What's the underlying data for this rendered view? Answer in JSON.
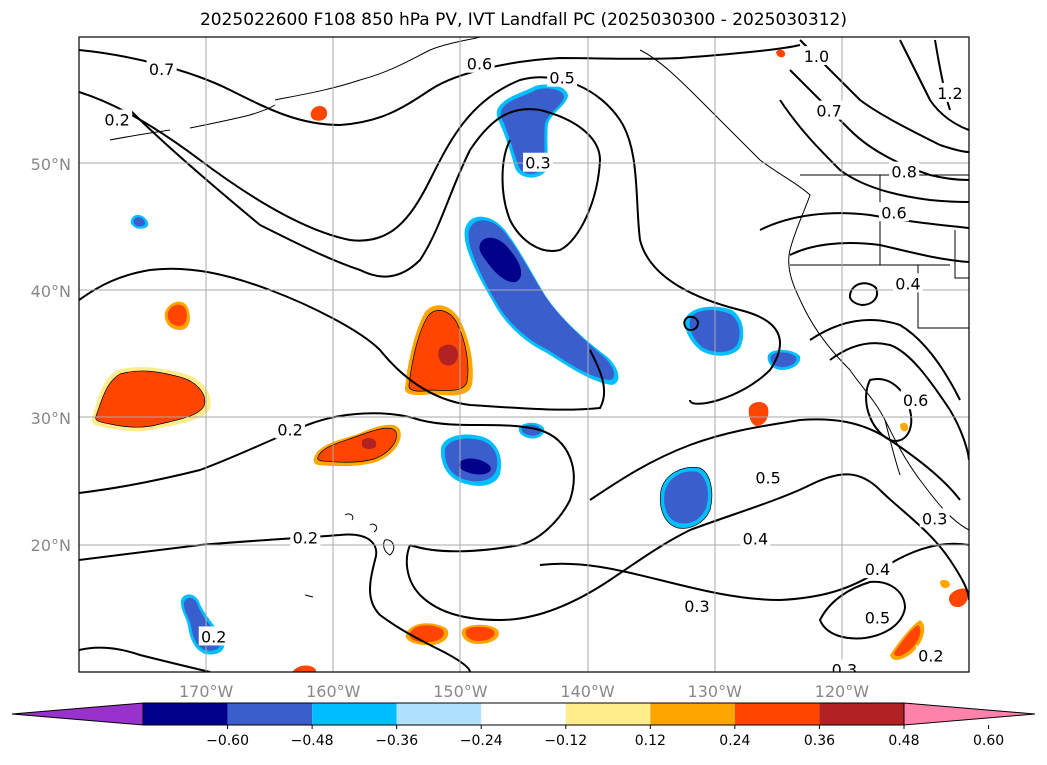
{
  "title": "2025022600 F108 850 hPa PV, IVT Landfall PC (2025030300 - 2025030312)",
  "map": {
    "lon_range": [
      -180,
      -110
    ],
    "lat_range": [
      10,
      60
    ],
    "lat_ticks": [
      {
        "value": 50,
        "label": "50°N"
      },
      {
        "value": 40,
        "label": "40°N"
      },
      {
        "value": 30,
        "label": "30°N"
      },
      {
        "value": 20,
        "label": "20°N"
      }
    ],
    "lon_ticks": [
      {
        "value": -170,
        "label": "170°W"
      },
      {
        "value": -160,
        "label": "160°W"
      },
      {
        "value": -150,
        "label": "150°W"
      },
      {
        "value": -140,
        "label": "140°W"
      },
      {
        "value": -130,
        "label": "130°W"
      },
      {
        "value": -120,
        "label": "120°W"
      }
    ],
    "grid": true,
    "contour_labels": [
      {
        "text": "0.7",
        "lon": -173.5,
        "lat": 57.5
      },
      {
        "text": "0.6",
        "lon": -148.5,
        "lat": 57.9
      },
      {
        "text": "0.5",
        "lon": -142,
        "lat": 56.8
      },
      {
        "text": "0.2",
        "lon": -177,
        "lat": 53.5
      },
      {
        "text": "1.0",
        "lon": -122,
        "lat": 58.5
      },
      {
        "text": "0.7",
        "lon": -121,
        "lat": 54.2
      },
      {
        "text": "1.2",
        "lon": -111.5,
        "lat": 55.6
      },
      {
        "text": "0.3",
        "lon": -143.9,
        "lat": 50.1
      },
      {
        "text": "0.8",
        "lon": -115.1,
        "lat": 49.4
      },
      {
        "text": "0.6",
        "lon": -115.9,
        "lat": 46.2
      },
      {
        "text": "0.4",
        "lon": -114.8,
        "lat": 40.6
      },
      {
        "text": "0.6",
        "lon": -114.2,
        "lat": 31.4
      },
      {
        "text": "0.2",
        "lon": -163.4,
        "lat": 29.1
      },
      {
        "text": "0.5",
        "lon": -125.8,
        "lat": 25.3
      },
      {
        "text": "0.2",
        "lon": -162.2,
        "lat": 20.6
      },
      {
        "text": "0.4",
        "lon": -126.8,
        "lat": 20.5
      },
      {
        "text": "0.3",
        "lon": -112.7,
        "lat": 22.1
      },
      {
        "text": "0.4",
        "lon": -117.2,
        "lat": 18.1
      },
      {
        "text": "0.3",
        "lon": -131.4,
        "lat": 15.2
      },
      {
        "text": "0.5",
        "lon": -117.2,
        "lat": 14.3
      },
      {
        "text": "0.2",
        "lon": -169.4,
        "lat": 12.8
      },
      {
        "text": "0.2",
        "lon": -113,
        "lat": 11.3
      },
      {
        "text": "0.3",
        "lon": -119.8,
        "lat": 10.2
      }
    ]
  },
  "colorbar": {
    "colors": [
      "#9932cc",
      "#00008b",
      "#3a5fcd",
      "#00bfff",
      "#b0e2ff",
      "#ffffff",
      "#ffec8b",
      "#ffa500",
      "#ff4500",
      "#b22222",
      "#ff82ab"
    ],
    "tick_labels": [
      "−0.60",
      "−0.48",
      "−0.36",
      "−0.24",
      "−0.12",
      "0.12",
      "0.24",
      "0.36",
      "0.48",
      "0.60"
    ]
  }
}
